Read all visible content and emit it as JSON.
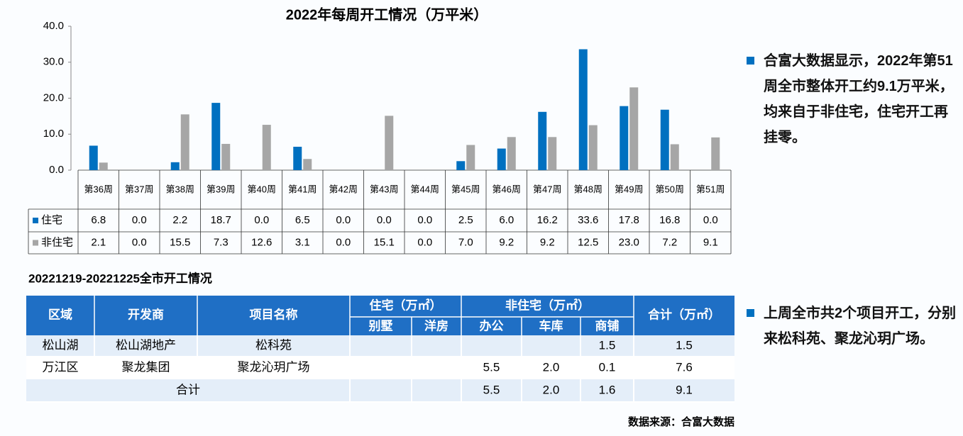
{
  "chart_data": {
    "type": "bar",
    "title": "2022年每周开工情况（万平米）",
    "categories": [
      "第36周",
      "第37周",
      "第38周",
      "第39周",
      "第40周",
      "第41周",
      "第42周",
      "第43周",
      "第44周",
      "第45周",
      "第46周",
      "第47周",
      "第48周",
      "第49周",
      "第50周",
      "第51周"
    ],
    "series": [
      {
        "name": "住宅",
        "color": "#0070c0",
        "values": [
          6.8,
          0,
          2.2,
          18.7,
          0,
          6.5,
          0,
          0,
          0,
          2.5,
          6,
          16.2,
          33.6,
          17.8,
          16.8,
          0
        ],
        "value_labels": [
          "6.8",
          "0.0",
          "2.2",
          "18.7",
          "0.0",
          "6.5",
          "0.0",
          "0.0",
          "0.0",
          "2.5",
          "6.0",
          "16.2",
          "33.6",
          "17.8",
          "16.8",
          "0.0"
        ]
      },
      {
        "name": "非住宅",
        "color": "#a6a6a6",
        "values": [
          2.1,
          0,
          15.5,
          7.3,
          12.6,
          3.1,
          0,
          15.1,
          0,
          7,
          9.2,
          9.2,
          12.5,
          23,
          7.2,
          9.1
        ],
        "value_labels": [
          "2.1",
          "0.0",
          "15.5",
          "7.3",
          "12.6",
          "3.1",
          "0.0",
          "15.1",
          "0.0",
          "7.0",
          "9.2",
          "9.2",
          "12.5",
          "23.0",
          "7.2",
          "9.1"
        ]
      }
    ],
    "ylim": [
      0,
      40
    ],
    "yticks": [
      {
        "value": 0,
        "label": "0.0"
      },
      {
        "value": 10,
        "label": "10.0"
      },
      {
        "value": 20,
        "label": "20.0"
      },
      {
        "value": 30,
        "label": "30.0"
      },
      {
        "value": 40,
        "label": "40.0"
      }
    ]
  },
  "table": {
    "title": "20221219-20221225全市开工情况",
    "header": [
      "区域",
      "开发商",
      "项目名称",
      "住宅（万㎡）",
      "非住宅（万㎡）",
      "合计（万㎡）"
    ],
    "subheader": [
      "别墅",
      "洋房",
      "办公",
      "车库",
      "商铺"
    ],
    "rows": [
      [
        "松山湖",
        "松山湖地产",
        "松科苑",
        null,
        null,
        null,
        null,
        "1.5",
        "1.5"
      ],
      [
        "万江区",
        "聚龙集团",
        "聚龙沁玥广场",
        null,
        null,
        "5.5",
        "2.0",
        "0.1",
        "7.6"
      ],
      [
        "合计",
        null,
        null,
        null,
        null,
        "5.5",
        "2.0",
        "1.6",
        "9.1"
      ]
    ]
  },
  "notes": [
    "合富大数据显示，2022年第51周全市整体开工约9.1万平米，均来自于非住宅，住宅开工再挂零。",
    "上周全市共2个项目开工，分别来松科苑、聚龙沁玥广场。"
  ],
  "source": "数据来源：合富大数据"
}
